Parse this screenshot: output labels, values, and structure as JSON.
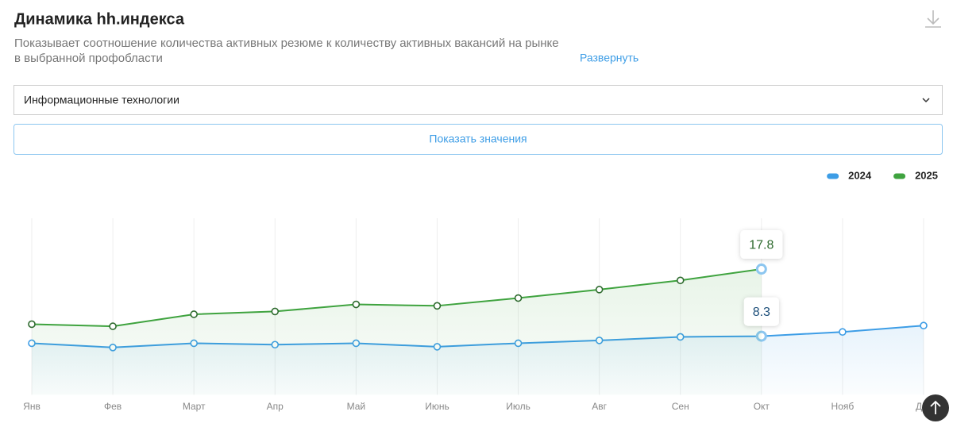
{
  "header": {
    "title": "Динамика hh.индекса",
    "subtitle_lines": [
      "Показывает соотношение количества активных резюме к количеству активных вакансий на рынке",
      "в выбранной профобласти"
    ],
    "expand_link": "Развернуть"
  },
  "filter": {
    "selected": "Информационные технологии"
  },
  "button": {
    "label": "Показать значения"
  },
  "chart_data": {
    "type": "line",
    "categories": [
      "Янв",
      "Фев",
      "Март",
      "Апр",
      "Май",
      "Июнь",
      "Июль",
      "Авг",
      "Сен",
      "Окт",
      "Нояб",
      "Дек"
    ],
    "series": [
      {
        "name": "2024",
        "color": "#3d9de6",
        "values": [
          7.3,
          6.7,
          7.3,
          7.1,
          7.3,
          6.8,
          7.3,
          7.7,
          8.2,
          8.3,
          8.9,
          9.8
        ]
      },
      {
        "name": "2025",
        "color": "#3fa33f",
        "values": [
          10.0,
          9.7,
          11.4,
          11.8,
          12.8,
          12.6,
          13.7,
          14.9,
          16.2,
          17.8,
          null,
          null
        ]
      }
    ],
    "ylim": [
      0,
      25
    ],
    "legend": "top-right",
    "grid": "x",
    "active_index": 9
  }
}
